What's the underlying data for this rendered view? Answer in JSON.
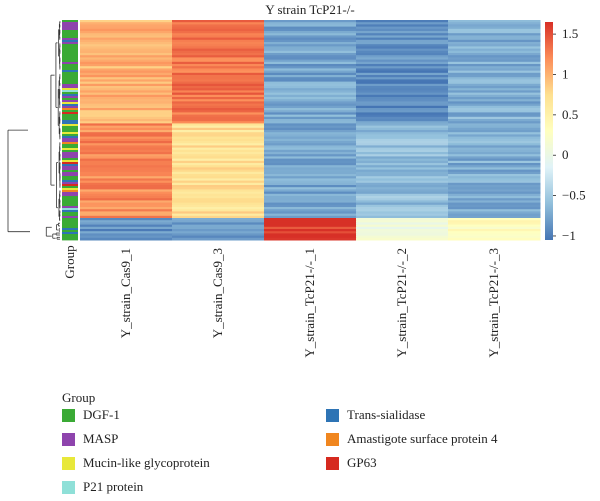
{
  "chart_data": {
    "type": "heatmap",
    "title": "Y strain TcP21-/-",
    "columns": [
      "Y_strain_Cas9_1",
      "Y_strain_Cas9_3",
      "Y_strain_TcP21-/-_1",
      "Y_strain_TcP21-/-_2",
      "Y_strain_TcP21-/-_3"
    ],
    "row_annotation_label": "Group",
    "colorbar": {
      "ticks": [
        1.5,
        1,
        0.5,
        0,
        -0.5,
        -1
      ],
      "tick_labels": [
        "1.5",
        "1",
        "0.5",
        "0",
        "−0.5",
        "−1"
      ],
      "range": [
        -1.05,
        1.65
      ]
    },
    "color_scale": [
      "#4575b4",
      "#91bfdb",
      "#e0f3f8",
      "#ffffbf",
      "#fee090",
      "#fc8d59",
      "#d73027"
    ],
    "blocks": [
      {
        "name": "block-1",
        "row_fraction": 0.47,
        "values": [
          1.0,
          1.3,
          -0.75,
          -0.9,
          -0.7
        ]
      },
      {
        "name": "block-2",
        "row_fraction": 0.43,
        "values": [
          1.2,
          0.7,
          -0.75,
          -0.6,
          -0.7
        ]
      },
      {
        "name": "block-3",
        "row_fraction": 0.1,
        "values": [
          -0.85,
          -0.85,
          1.6,
          0.05,
          0.3
        ]
      }
    ],
    "legend": {
      "title": "Group",
      "items": [
        {
          "label": "DGF-1",
          "color": "#3aaa35"
        },
        {
          "label": "MASP",
          "color": "#8e44ad"
        },
        {
          "label": "Mucin-like glycoprotein",
          "color": "#e8e83a"
        },
        {
          "label": "P21 protein",
          "color": "#8fe0d8"
        },
        {
          "label": "Trans-sialidase",
          "color": "#2e74b5"
        },
        {
          "label": "Amastigote surface protein 4",
          "color": "#f0861f"
        },
        {
          "label": "GP63",
          "color": "#d62a1f"
        }
      ]
    }
  }
}
